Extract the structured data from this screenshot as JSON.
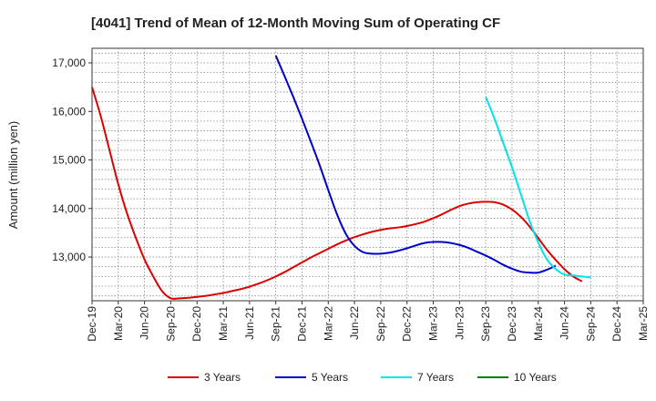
{
  "chart_data": {
    "type": "line",
    "title": "[4041]  Trend of Mean of 12-Month Moving Sum of Operating CF",
    "ylabel": "Amount (million yen)",
    "xlabel": "",
    "ylim": [
      12100,
      17300
    ],
    "yticks": [
      13000,
      14000,
      15000,
      16000,
      17000
    ],
    "ytick_labels": [
      "13,000",
      "14,000",
      "15,000",
      "16,000",
      "17,000"
    ],
    "x_tick_labels": [
      "Dec-19",
      "Mar-20",
      "Jun-20",
      "Sep-20",
      "Dec-20",
      "Mar-21",
      "Jun-21",
      "Sep-21",
      "Dec-21",
      "Mar-22",
      "Jun-22",
      "Sep-22",
      "Dec-22",
      "Mar-23",
      "Jun-23",
      "Sep-23",
      "Dec-23",
      "Mar-24",
      "Jun-24",
      "Sep-24",
      "Dec-24",
      "Mar-25"
    ],
    "x_start": "Dec-19",
    "x_end": "Mar-25",
    "grid": true,
    "legend_position": "bottom",
    "series": [
      {
        "name": "3 Years",
        "color": "#dd0000",
        "start": "Dec-19",
        "values": [
          16500,
          15900,
          15200,
          14500,
          13900,
          13400,
          12950,
          12600,
          12300,
          12150,
          12150,
          12160,
          12180,
          12200,
          12230,
          12260,
          12300,
          12340,
          12390,
          12450,
          12520,
          12600,
          12690,
          12790,
          12890,
          12990,
          13080,
          13170,
          13260,
          13340,
          13410,
          13470,
          13520,
          13560,
          13590,
          13610,
          13640,
          13680,
          13730,
          13800,
          13880,
          13970,
          14050,
          14100,
          14130,
          14140,
          14130,
          14080,
          13980,
          13830,
          13630,
          13390,
          13150,
          12940,
          12750,
          12600,
          12500
        ]
      },
      {
        "name": "5 Years",
        "color": "#0000cc",
        "start": "Sep-21",
        "values": [
          17150,
          16730,
          16300,
          15850,
          15380,
          14900,
          14380,
          13880,
          13480,
          13230,
          13100,
          13070,
          13070,
          13090,
          13130,
          13180,
          13240,
          13290,
          13310,
          13310,
          13290,
          13250,
          13190,
          13110,
          13030,
          12940,
          12840,
          12760,
          12700,
          12680,
          12680,
          12740,
          12820
        ]
      },
      {
        "name": "7 Years",
        "color": "#00e5e5",
        "start": "Sep-23",
        "values": [
          16300,
          15850,
          15350,
          14850,
          14300,
          13750,
          13300,
          12950,
          12750,
          12640,
          12620,
          12600,
          12580
        ]
      },
      {
        "name": "10 Years",
        "color": "#008000",
        "start": "Sep-24",
        "values": []
      }
    ]
  }
}
